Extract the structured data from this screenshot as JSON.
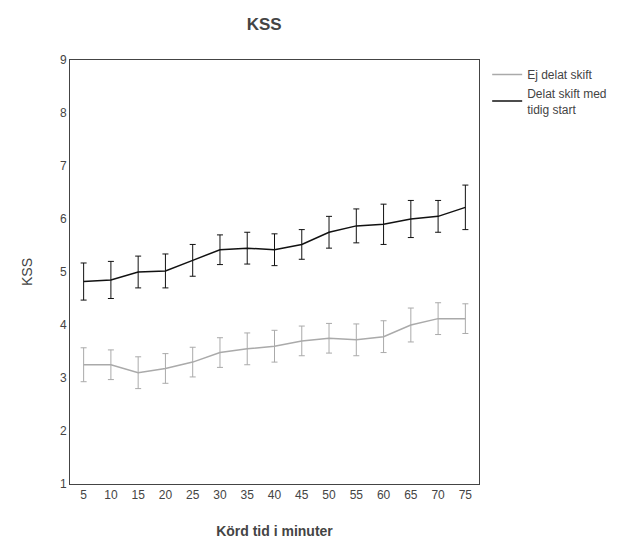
{
  "chart_data": {
    "type": "line",
    "title": "KSS",
    "xlabel": "Körd tid i minuter",
    "ylabel": "KSS",
    "x": [
      5,
      10,
      15,
      20,
      25,
      30,
      35,
      40,
      45,
      50,
      55,
      60,
      65,
      70,
      75
    ],
    "series": [
      {
        "name": "Ej delat skift",
        "color": "#aaaaaa",
        "values": [
          3.25,
          3.25,
          3.1,
          3.18,
          3.3,
          3.48,
          3.55,
          3.6,
          3.7,
          3.75,
          3.72,
          3.78,
          4.0,
          4.12,
          4.12
        ],
        "error": [
          0.32,
          0.28,
          0.3,
          0.28,
          0.28,
          0.28,
          0.3,
          0.3,
          0.28,
          0.28,
          0.3,
          0.3,
          0.32,
          0.3,
          0.28
        ]
      },
      {
        "name": "Delat skift med\ntidig start",
        "color": "#111111",
        "values": [
          4.82,
          4.85,
          5.0,
          5.02,
          5.22,
          5.42,
          5.45,
          5.42,
          5.52,
          5.75,
          5.87,
          5.9,
          6.0,
          6.05,
          6.22
        ],
        "error": [
          0.35,
          0.35,
          0.3,
          0.32,
          0.3,
          0.28,
          0.3,
          0.3,
          0.28,
          0.3,
          0.32,
          0.38,
          0.35,
          0.3,
          0.42
        ]
      }
    ],
    "xlim": [
      2.5,
      77.5
    ],
    "xticks": [
      5,
      10,
      15,
      20,
      25,
      30,
      35,
      40,
      45,
      50,
      55,
      60,
      65,
      70,
      75
    ],
    "ylim": [
      1,
      9
    ],
    "yticks": [
      1,
      2,
      3,
      4,
      5,
      6,
      7,
      8,
      9
    ],
    "grid": false,
    "legend": "right"
  }
}
